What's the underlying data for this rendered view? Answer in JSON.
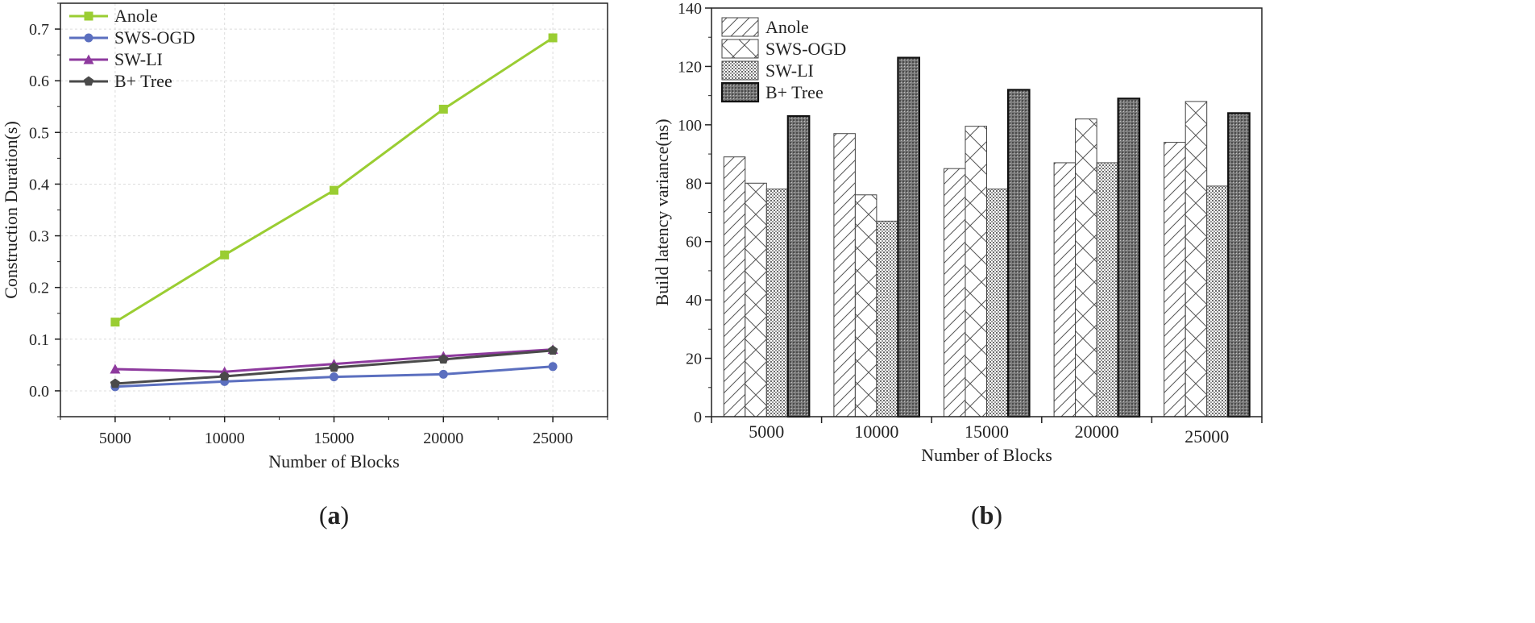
{
  "panel_a_label": {
    "open": "(",
    "letter": "a",
    "close": ")"
  },
  "panel_b_label": {
    "open": "(",
    "letter": "b",
    "close": ")"
  },
  "chart_data": [
    {
      "type": "line",
      "xlabel": "Number of Blocks",
      "ylabel": "Construction Duration(s)",
      "x": [
        5000,
        10000,
        15000,
        20000,
        25000
      ],
      "xlim": [
        2500,
        27500
      ],
      "ylim": [
        -0.05,
        0.75
      ],
      "xticks": [
        5000,
        10000,
        15000,
        20000,
        25000
      ],
      "yticks": [
        0.0,
        0.1,
        0.2,
        0.3,
        0.4,
        0.5,
        0.6,
        0.7
      ],
      "ytick_labels": [
        "0.0",
        "0.1",
        "0.2",
        "0.3",
        "0.4",
        "0.5",
        "0.6",
        "0.7"
      ],
      "grid": true,
      "legend_position": "top-left",
      "series": [
        {
          "name": "Anole",
          "color": "#9ACD32",
          "marker": "square",
          "values": [
            0.133,
            0.263,
            0.388,
            0.545,
            0.683
          ]
        },
        {
          "name": "SWS-OGD",
          "color": "#5B6FBF",
          "marker": "circle",
          "values": [
            0.008,
            0.018,
            0.027,
            0.032,
            0.047
          ]
        },
        {
          "name": "SW-LI",
          "color": "#8E3A9E",
          "marker": "triangle",
          "values": [
            0.042,
            0.037,
            0.052,
            0.067,
            0.08
          ]
        },
        {
          "name": "B+ Tree",
          "color": "#4A4A4A",
          "marker": "pentagon",
          "values": [
            0.014,
            0.028,
            0.045,
            0.061,
            0.078
          ]
        }
      ]
    },
    {
      "type": "bar",
      "xlabel": "Number of Blocks",
      "ylabel": "Build latency variance(ns)",
      "categories": [
        "5000",
        "10000",
        "15000",
        "20000",
        "25000"
      ],
      "ylim": [
        0,
        140
      ],
      "yticks": [
        0,
        20,
        40,
        60,
        80,
        100,
        120,
        140
      ],
      "grid": false,
      "legend_position": "top-left",
      "series": [
        {
          "name": "Anole",
          "pattern": "diagonal",
          "values": [
            89,
            97,
            85,
            87,
            94
          ]
        },
        {
          "name": "SWS-OGD",
          "pattern": "crosshatch",
          "values": [
            80,
            76,
            99.5,
            102,
            108
          ]
        },
        {
          "name": "SW-LI",
          "pattern": "dense-dots",
          "values": [
            78,
            67,
            78,
            87,
            79
          ]
        },
        {
          "name": "B+ Tree",
          "pattern": "dark-dots",
          "values": [
            103,
            123,
            112,
            109,
            104
          ]
        }
      ]
    }
  ]
}
